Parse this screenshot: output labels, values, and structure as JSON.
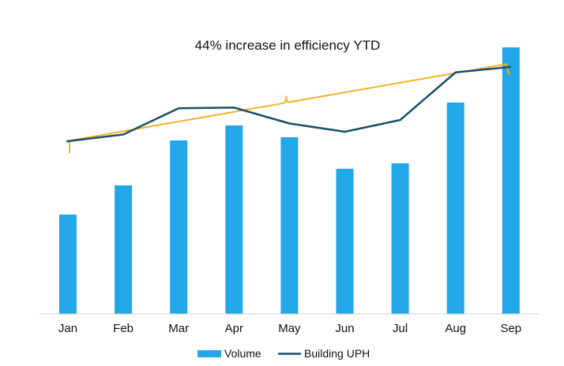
{
  "chart_data": {
    "type": "bar",
    "title": "",
    "xlabel": "",
    "ylabel": "",
    "categories": [
      "Jan",
      "Feb",
      "Mar",
      "Apr",
      "May",
      "Jun",
      "Jul",
      "Aug",
      "Sep"
    ],
    "series": [
      {
        "name": "Volume",
        "type": "bar",
        "values": [
          126,
          163,
          220,
          239,
          224,
          184,
          191,
          268,
          338
        ],
        "color": "#22A7E8",
        "ylim": [
          0,
          350
        ]
      },
      {
        "name": "Building UPH",
        "type": "line",
        "values": [
          250,
          260,
          298,
          299,
          276,
          264,
          281,
          350,
          358
        ],
        "color": "#1B4F6B",
        "ylim": [
          0,
          400
        ]
      }
    ],
    "trend": {
      "label": "44% increase in efficiency YTD",
      "color": "#F5B120",
      "start_value": 251,
      "end_value": 362
    },
    "legend_position": "bottom-center",
    "grid": false
  }
}
